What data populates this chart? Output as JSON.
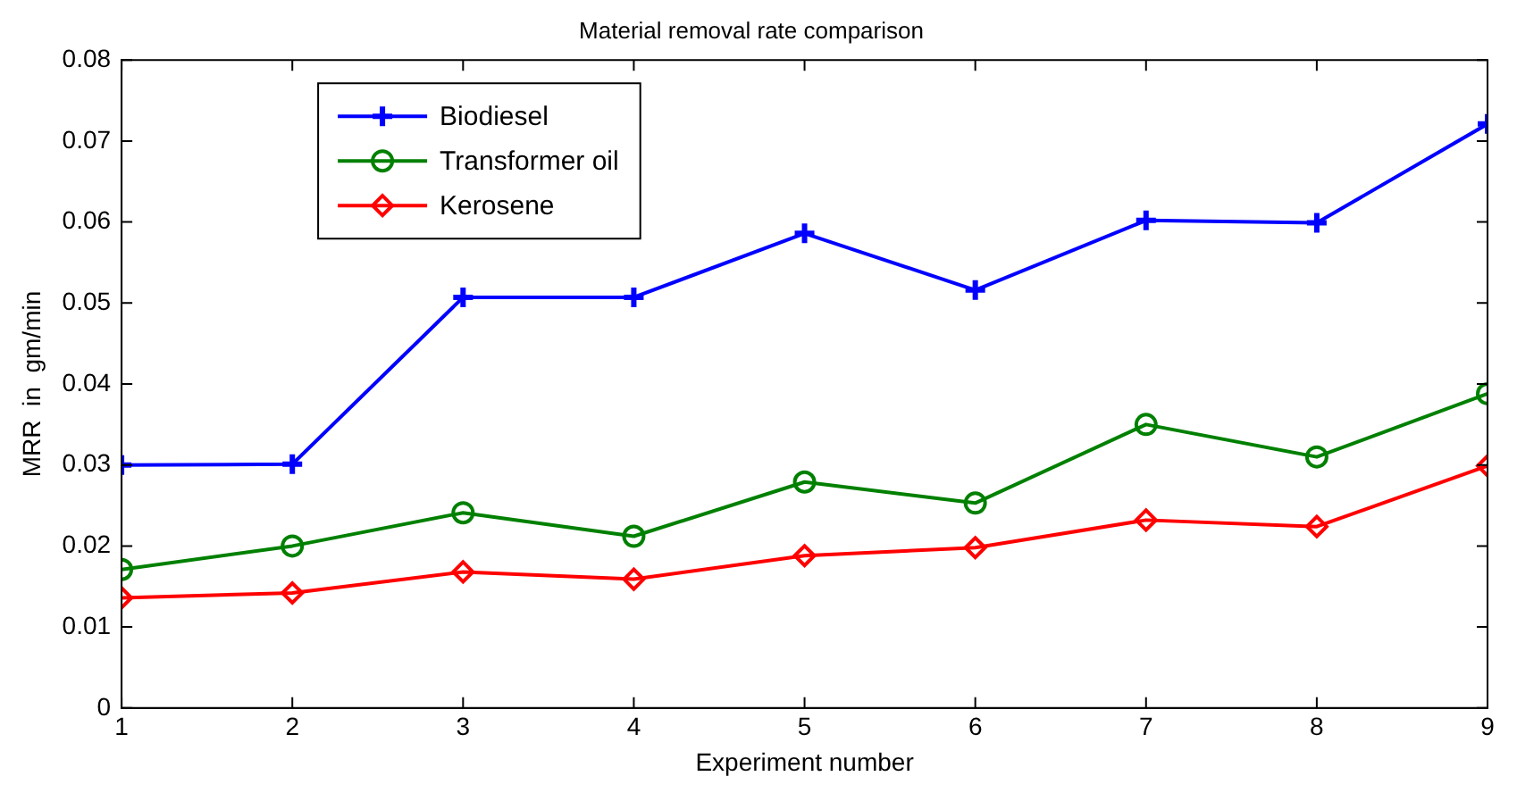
{
  "chart_data": {
    "type": "line",
    "title": "Material removal rate comparison",
    "xlabel": "Experiment number",
    "ylabel": "MRR  in  gm/min",
    "x": [
      1,
      2,
      3,
      4,
      5,
      6,
      7,
      8,
      9
    ],
    "series": [
      {
        "name": "Biodiesel",
        "color": "#0000ff",
        "marker": "cross",
        "values": [
          0.03,
          0.0301,
          0.0507,
          0.0507,
          0.0586,
          0.0516,
          0.0602,
          0.0599,
          0.0721
        ]
      },
      {
        "name": "Transformer oil",
        "color": "#008000",
        "marker": "circle",
        "values": [
          0.0171,
          0.02,
          0.0241,
          0.0212,
          0.0279,
          0.0253,
          0.035,
          0.031,
          0.0388
        ]
      },
      {
        "name": "Kerosene",
        "color": "#ff0000",
        "marker": "diamond",
        "values": [
          0.0136,
          0.0142,
          0.0168,
          0.0159,
          0.0188,
          0.0198,
          0.0232,
          0.0224,
          0.0299
        ]
      }
    ],
    "xlim": [
      1,
      9
    ],
    "xticks": [
      1,
      2,
      3,
      4,
      5,
      6,
      7,
      8,
      9
    ],
    "ylim": [
      0,
      0.08
    ],
    "yticks": [
      0,
      0.01,
      0.02,
      0.03,
      0.04,
      0.05,
      0.06,
      0.07,
      0.08
    ],
    "grid": false,
    "legend": "top left",
    "line_style": "solid"
  }
}
